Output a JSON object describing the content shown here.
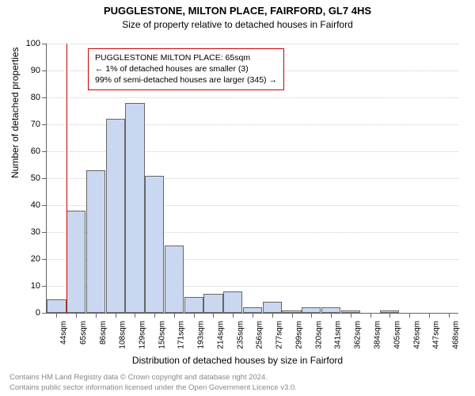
{
  "title": "PUGGLESTONE, MILTON PLACE, FAIRFORD, GL7 4HS",
  "subtitle": "Size of property relative to detached houses in Fairford",
  "yaxis_title": "Number of detached properties",
  "xaxis_title": "Distribution of detached houses by size in Fairford",
  "ylim": [
    0,
    100
  ],
  "ytick_step": 10,
  "yticks": [
    0,
    10,
    20,
    30,
    40,
    50,
    60,
    70,
    80,
    90,
    100
  ],
  "bar_color": "#c9d8f0",
  "bar_border": "#666666",
  "grid_color": "#cccccc",
  "background_color": "#ffffff",
  "refline_color": "#cc0000",
  "refline_x_index": 1,
  "chart": {
    "categories": [
      "44sqm",
      "65sqm",
      "86sqm",
      "108sqm",
      "129sqm",
      "150sqm",
      "171sqm",
      "193sqm",
      "214sqm",
      "235sqm",
      "256sqm",
      "277sqm",
      "299sqm",
      "320sqm",
      "341sqm",
      "362sqm",
      "384sqm",
      "405sqm",
      "426sqm",
      "447sqm",
      "468sqm"
    ],
    "values": [
      5,
      38,
      53,
      72,
      78,
      51,
      25,
      6,
      7,
      8,
      2,
      4,
      1,
      2,
      2,
      1,
      0,
      1,
      0,
      0,
      0
    ]
  },
  "annotation": {
    "line1": "PUGGLESTONE MILTON PLACE: 65sqm",
    "line2": "← 1% of detached houses are smaller (3)",
    "line3": "99% of semi-detached houses are larger (345) →"
  },
  "footer": {
    "line1": "Contains HM Land Registry data © Crown copyright and database right 2024.",
    "line2": "Contains public sector information licensed under the Open Government Licence v3.0."
  },
  "fonts": {
    "title_size": 13,
    "subtitle_size": 12,
    "axis_title_size": 12,
    "tick_size": 11,
    "xtick_size": 10,
    "annot_size": 10.5,
    "footer_size": 9.5
  }
}
